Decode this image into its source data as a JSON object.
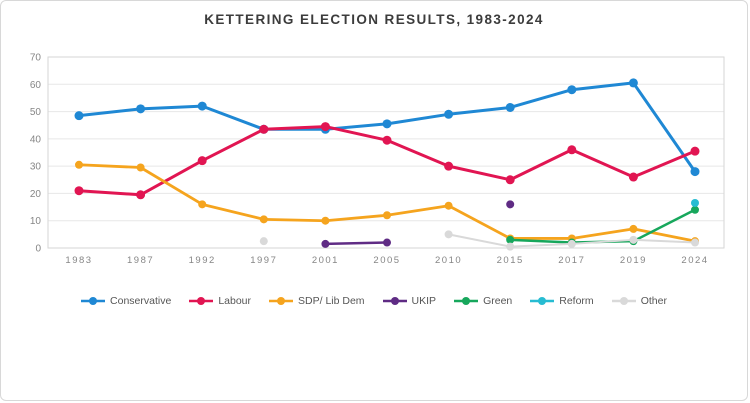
{
  "title": "KETTERING ELECTION RESULTS, 1983-2024",
  "chart_data": {
    "type": "line",
    "title": "KETTERING ELECTION RESULTS, 1983-2024",
    "categories": [
      "1983",
      "1987",
      "1992",
      "1997",
      "2001",
      "2005",
      "2010",
      "2015",
      "2017",
      "2019",
      "2024"
    ],
    "xlabel": "",
    "ylabel": "",
    "ylim": [
      0,
      70
    ],
    "y_ticks": [
      0,
      10,
      20,
      30,
      40,
      50,
      60,
      70
    ],
    "grid": true,
    "legend_position": "bottom",
    "series": [
      {
        "name": "Conservative",
        "color": "#1f88d4",
        "line_width": 3,
        "values": [
          48.5,
          51,
          52,
          43.5,
          43.5,
          45.5,
          49,
          51.5,
          58,
          60.5,
          28
        ]
      },
      {
        "name": "Labour",
        "color": "#e11552",
        "line_width": 3,
        "values": [
          21,
          19.5,
          32,
          43.5,
          44.5,
          39.5,
          30,
          25,
          36,
          26,
          35.5
        ]
      },
      {
        "name": "SDP/ Lib Dem",
        "color": "#f5a41e",
        "line_width": 2.8,
        "values": [
          30.5,
          29.5,
          16,
          10.5,
          10,
          12,
          15.5,
          3.5,
          3.5,
          7,
          2.5
        ]
      },
      {
        "name": "UKIP",
        "color": "#5f2b84",
        "line_width": 2.5,
        "values": [
          null,
          null,
          null,
          null,
          1.5,
          2,
          null,
          16,
          null,
          null,
          null
        ]
      },
      {
        "name": "Green",
        "color": "#17a75c",
        "line_width": 2.5,
        "values": [
          null,
          null,
          null,
          null,
          null,
          null,
          null,
          3,
          2,
          2.5,
          14
        ]
      },
      {
        "name": "Reform",
        "color": "#27bcd2",
        "line_width": 2.5,
        "values": [
          null,
          null,
          null,
          null,
          null,
          null,
          null,
          null,
          null,
          null,
          16.5
        ]
      },
      {
        "name": "Other",
        "color": "#d9d9d9",
        "line_width": 2,
        "values": [
          null,
          null,
          null,
          2.5,
          null,
          null,
          5,
          0.5,
          1.5,
          3,
          2
        ]
      }
    ]
  },
  "style": {
    "grid_color": "#e7e7e7",
    "axis_color": "#d6d6d6",
    "tick_color": "#868686",
    "title_color": "#3c3c3c",
    "legend_text_color": "#565656"
  }
}
